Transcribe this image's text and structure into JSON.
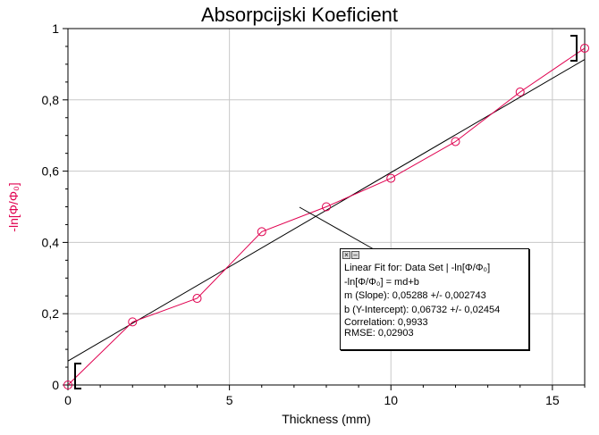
{
  "chart_data": {
    "type": "scatter",
    "title": "Absorpcijski Koeficient",
    "xlabel": "Thickness (mm)",
    "ylabel": "-ln[Φ/Φ₀]",
    "xlim": [
      0,
      16
    ],
    "ylim": [
      0,
      1
    ],
    "x_ticks": [
      "0",
      "5",
      "10",
      "15"
    ],
    "y_ticks": [
      "0",
      "0,2",
      "0,4",
      "0,6",
      "0,8",
      "1"
    ],
    "grid": true,
    "series": [
      {
        "x": [
          0,
          2,
          4,
          6,
          8,
          10,
          12,
          14,
          16
        ],
        "y": [
          0.0,
          0.177,
          0.243,
          0.43,
          0.5,
          0.58,
          0.683,
          0.822,
          0.945
        ],
        "color": "#e0004f",
        "marker": "circle",
        "connected": true
      }
    ],
    "fit": {
      "slope": 0.05288,
      "intercept": 0.06732,
      "color": "#000000",
      "range": [
        0,
        16
      ]
    },
    "fit_box": {
      "title": "Linear Fit for: Data Set | -ln[Φ/Φ₀]",
      "equation": "-ln[Φ/Φ₀] = md+b",
      "slope_text": "m (Slope): 0,05288 +/- 0,002743",
      "intercept_text": "b (Y-Intercept): 0,06732 +/- 0,02454",
      "correlation_text": "Correlation: 0,9933",
      "rmse_text": "RMSE: 0,02903"
    },
    "colors": {
      "series": "#e0004f",
      "grid": "#c8c8c8",
      "axis": "#000000"
    }
  }
}
